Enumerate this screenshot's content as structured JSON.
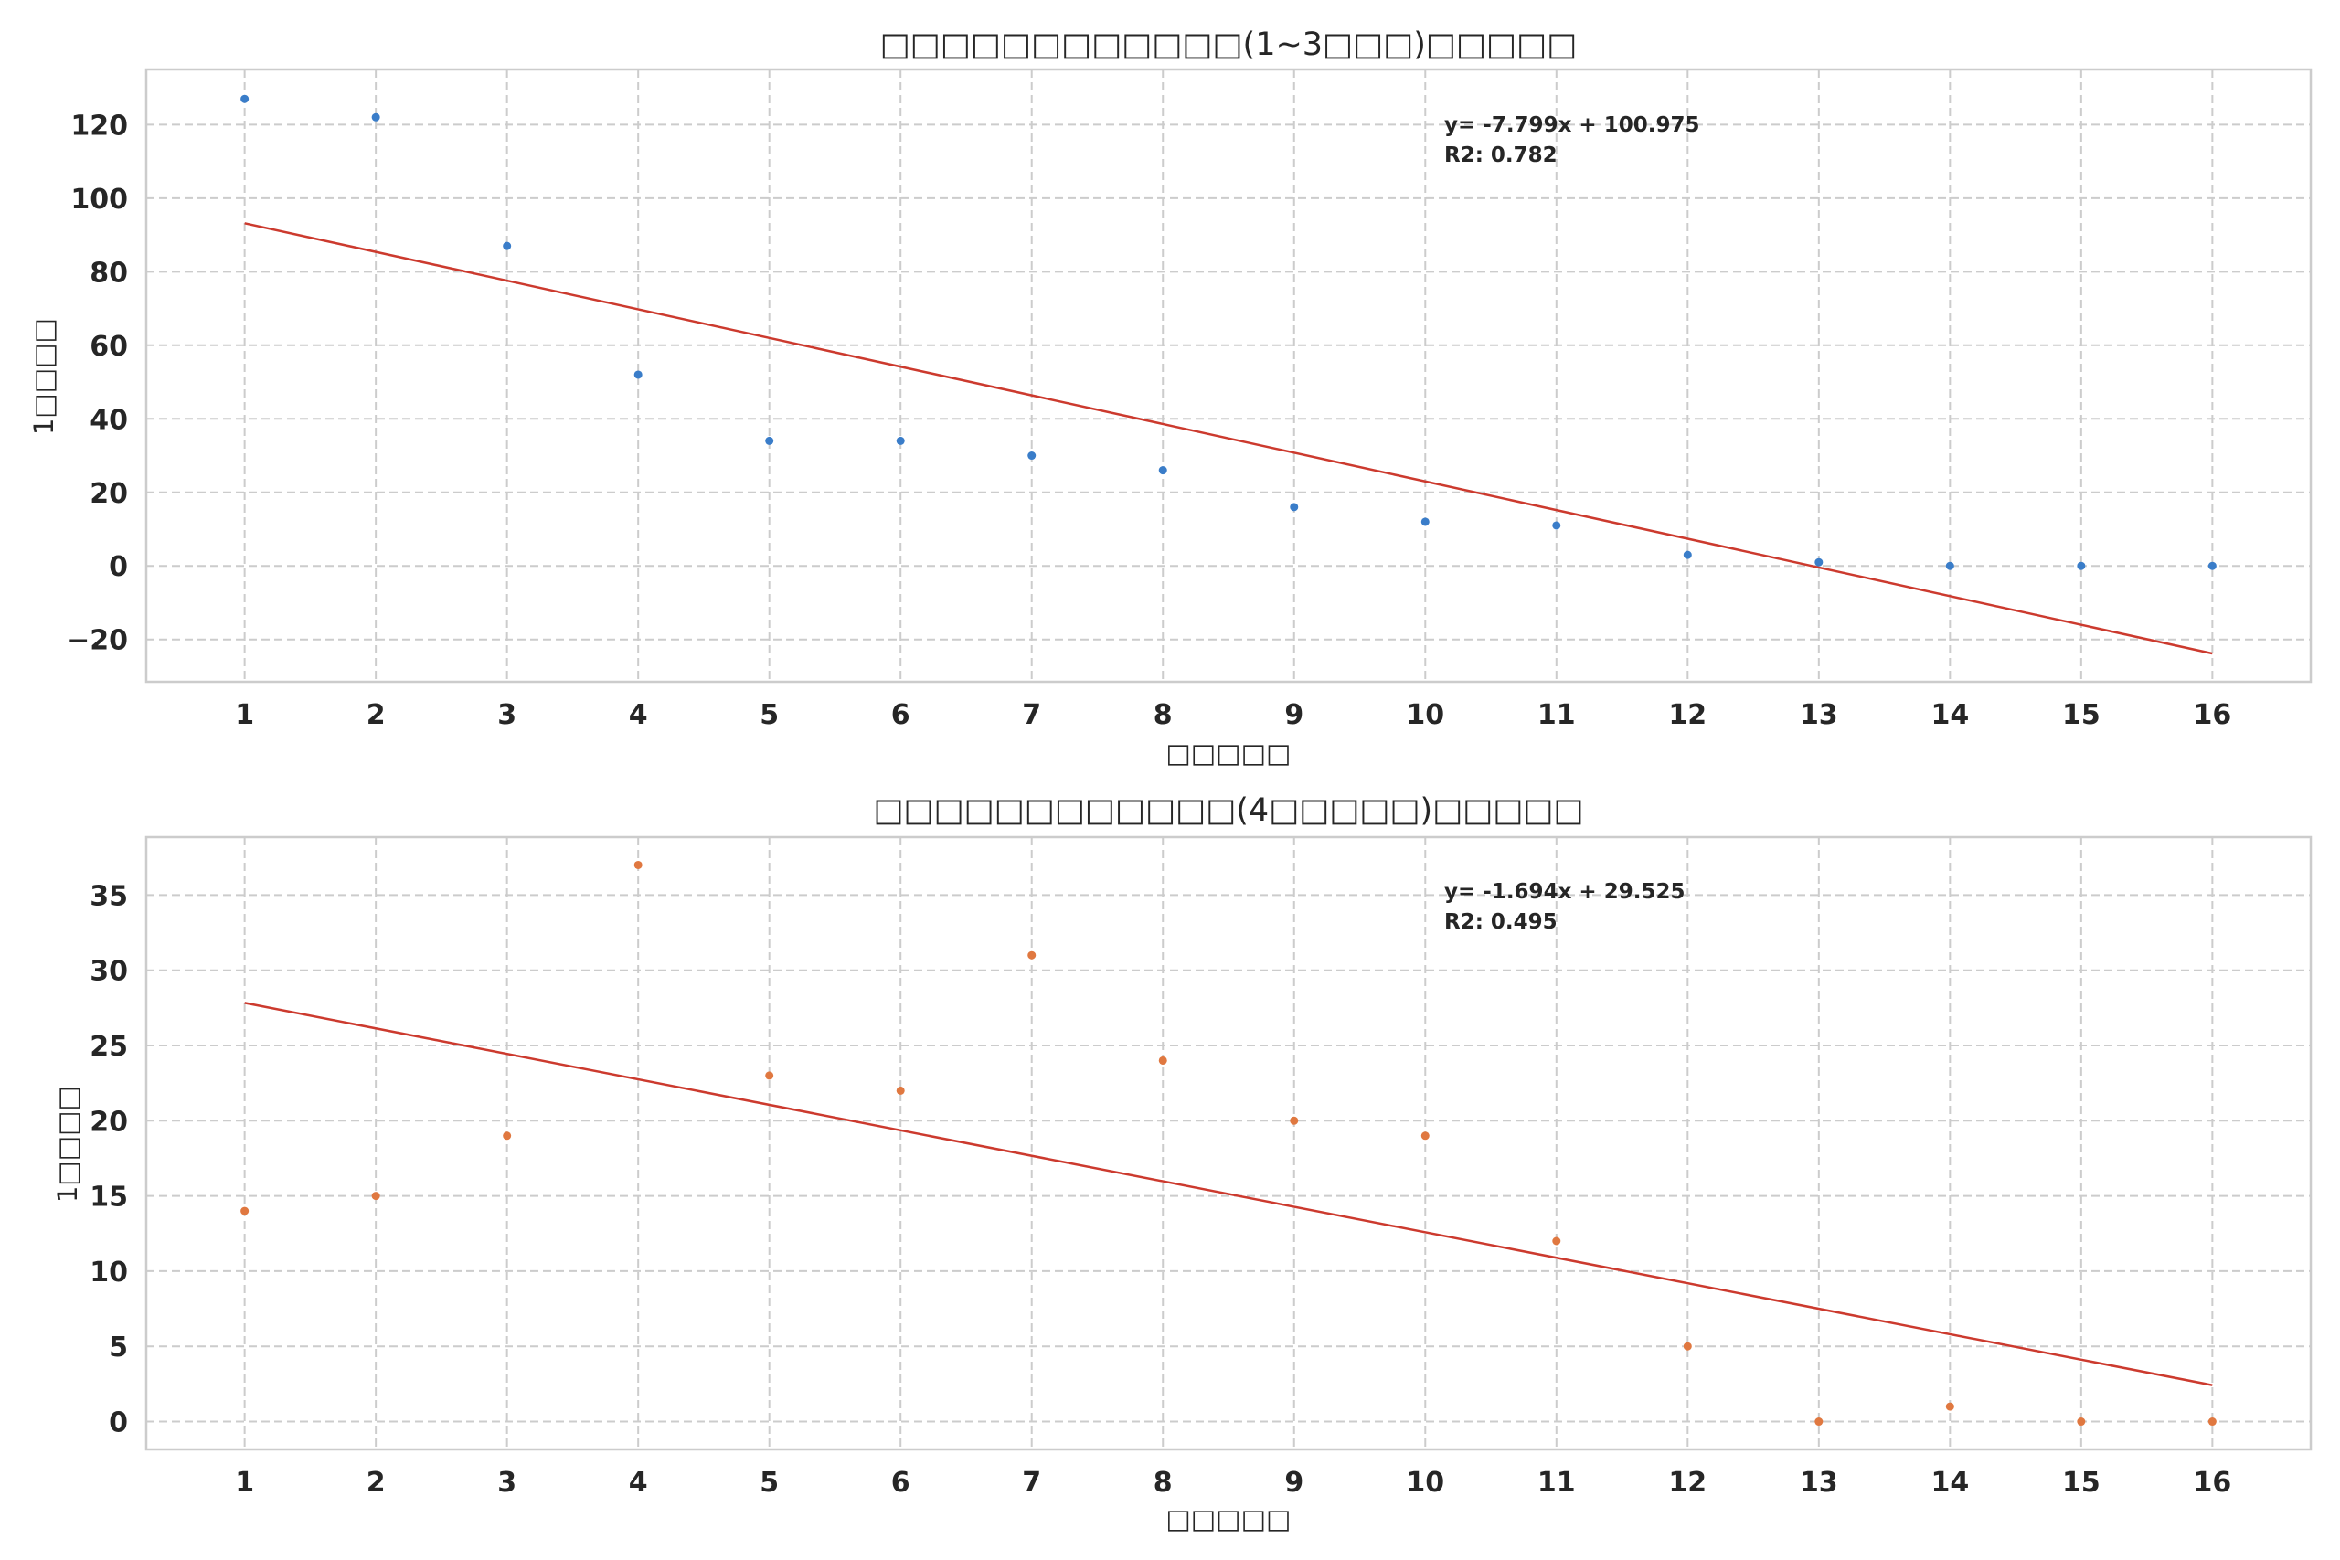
{
  "chart_data": [
    {
      "type": "scatter",
      "title": "□□□□□□□□□□□□(1~3□□□)□□□□□",
      "xlabel": "□□□□□",
      "ylabel": "1□□□□",
      "xticks": [
        "1",
        "2",
        "3",
        "4",
        "5",
        "6",
        "7",
        "8",
        "9",
        "10",
        "11",
        "12",
        "13",
        "14",
        "15",
        "16"
      ],
      "yticks": [
        -20,
        0,
        20,
        40,
        60,
        80,
        100,
        120
      ],
      "xlim": [
        0.25,
        16.75
      ],
      "ylim": [
        -31.5,
        135
      ],
      "grid": true,
      "point_color": "#3a7dc9",
      "line_color": "#cc3a2e",
      "series": [
        {
          "x": [
            1,
            2,
            3,
            4,
            5,
            6,
            7,
            8,
            9,
            10,
            11,
            12,
            13,
            14,
            15,
            16
          ],
          "values": [
            127,
            122,
            87,
            52,
            34,
            34,
            30,
            26,
            16,
            12,
            11,
            3,
            1,
            0,
            0,
            0
          ]
        }
      ],
      "trendline": {
        "slope": -7.799,
        "intercept": 100.975,
        "x_range": [
          1,
          16
        ]
      },
      "annotation": {
        "equation": "y= -7.799x + 100.975",
        "r2": "R2: 0.782"
      }
    },
    {
      "type": "scatter",
      "title": "□□□□□□□□□□□□(4□□□□□)□□□□□",
      "xlabel": "□□□□□",
      "ylabel": "1□□□□",
      "xticks": [
        "1",
        "2",
        "3",
        "4",
        "5",
        "6",
        "7",
        "8",
        "9",
        "10",
        "11",
        "12",
        "13",
        "14",
        "15",
        "16"
      ],
      "yticks": [
        0,
        5,
        10,
        15,
        20,
        25,
        30,
        35
      ],
      "xlim": [
        0.25,
        16.75
      ],
      "ylim": [
        -1.85,
        38.85
      ],
      "grid": true,
      "point_color": "#e07840",
      "line_color": "#cc3a2e",
      "series": [
        {
          "x": [
            1,
            2,
            3,
            4,
            5,
            6,
            7,
            8,
            9,
            10,
            11,
            12,
            13,
            14,
            15,
            16
          ],
          "values": [
            14,
            15,
            19,
            37,
            23,
            22,
            31,
            24,
            20,
            19,
            12,
            5,
            0,
            1,
            0,
            0
          ]
        }
      ],
      "trendline": {
        "slope": -1.694,
        "intercept": 29.525,
        "x_range": [
          1,
          16
        ]
      },
      "annotation": {
        "equation": "y= -1.694x + 29.525",
        "r2": "R2: 0.495"
      }
    }
  ]
}
